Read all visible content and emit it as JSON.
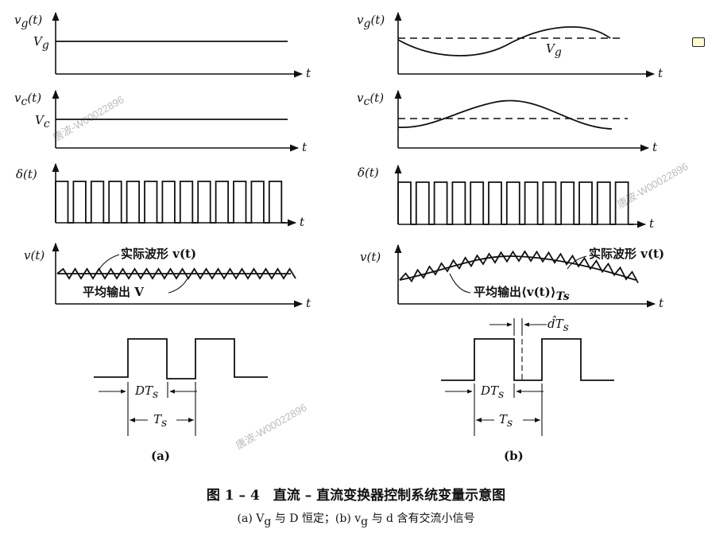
{
  "panel_a": {
    "vg_axis": "v",
    "vg_axis_sub": "g",
    "vg_axis_arg": "(t)",
    "vg_level": "V",
    "vg_level_sub": "g",
    "vc_axis": "v",
    "vc_axis_sub": "c",
    "vc_axis_arg": "(t)",
    "vc_level": "V",
    "vc_level_sub": "c",
    "delta_axis": "δ(t)",
    "v_axis": "v(t)",
    "t": "t",
    "actual_wave": "实际波形 v(t)",
    "avg_output": "平均输出 V",
    "duty_label": "DT",
    "duty_sub": "s",
    "period_label": "T",
    "period_sub": "s",
    "tag": "(a)"
  },
  "panel_b": {
    "vg_axis": "v",
    "vg_axis_sub": "g",
    "vg_axis_arg": "(t)",
    "vg_level": "V",
    "vg_level_sub": "g",
    "vc_axis": "v",
    "vc_axis_sub": "c",
    "vc_axis_arg": "(t)",
    "delta_axis": "δ(t)",
    "v_axis": "v(t)",
    "t": "t",
    "actual_wave": "实际波形 v(t)",
    "avg_output": "平均输出⟨v(t)⟩",
    "avg_output_sub": "Ts",
    "dhat_label": "d̂T",
    "dhat_sub": "s",
    "duty_label": "DT",
    "duty_sub": "s",
    "period_label": "T",
    "period_sub": "s",
    "tag": "(b)"
  },
  "caption": {
    "title": "图 1 – 4　直流 – 直流变换器控制系统变量示意图",
    "subtitle": "(a) V",
    "subtitle_sub1": "g",
    "subtitle_mid": " 与 D 恒定；(b) v",
    "subtitle_sub2": "g",
    "subtitle_end": " 与 d 含有交流小信号"
  },
  "watermarks": [
    "唐波-W00022896",
    "唐波-W00022896",
    "唐波-W00022896",
    "唐波-W00022896"
  ],
  "icons": {
    "comment": "comment-note-icon"
  }
}
